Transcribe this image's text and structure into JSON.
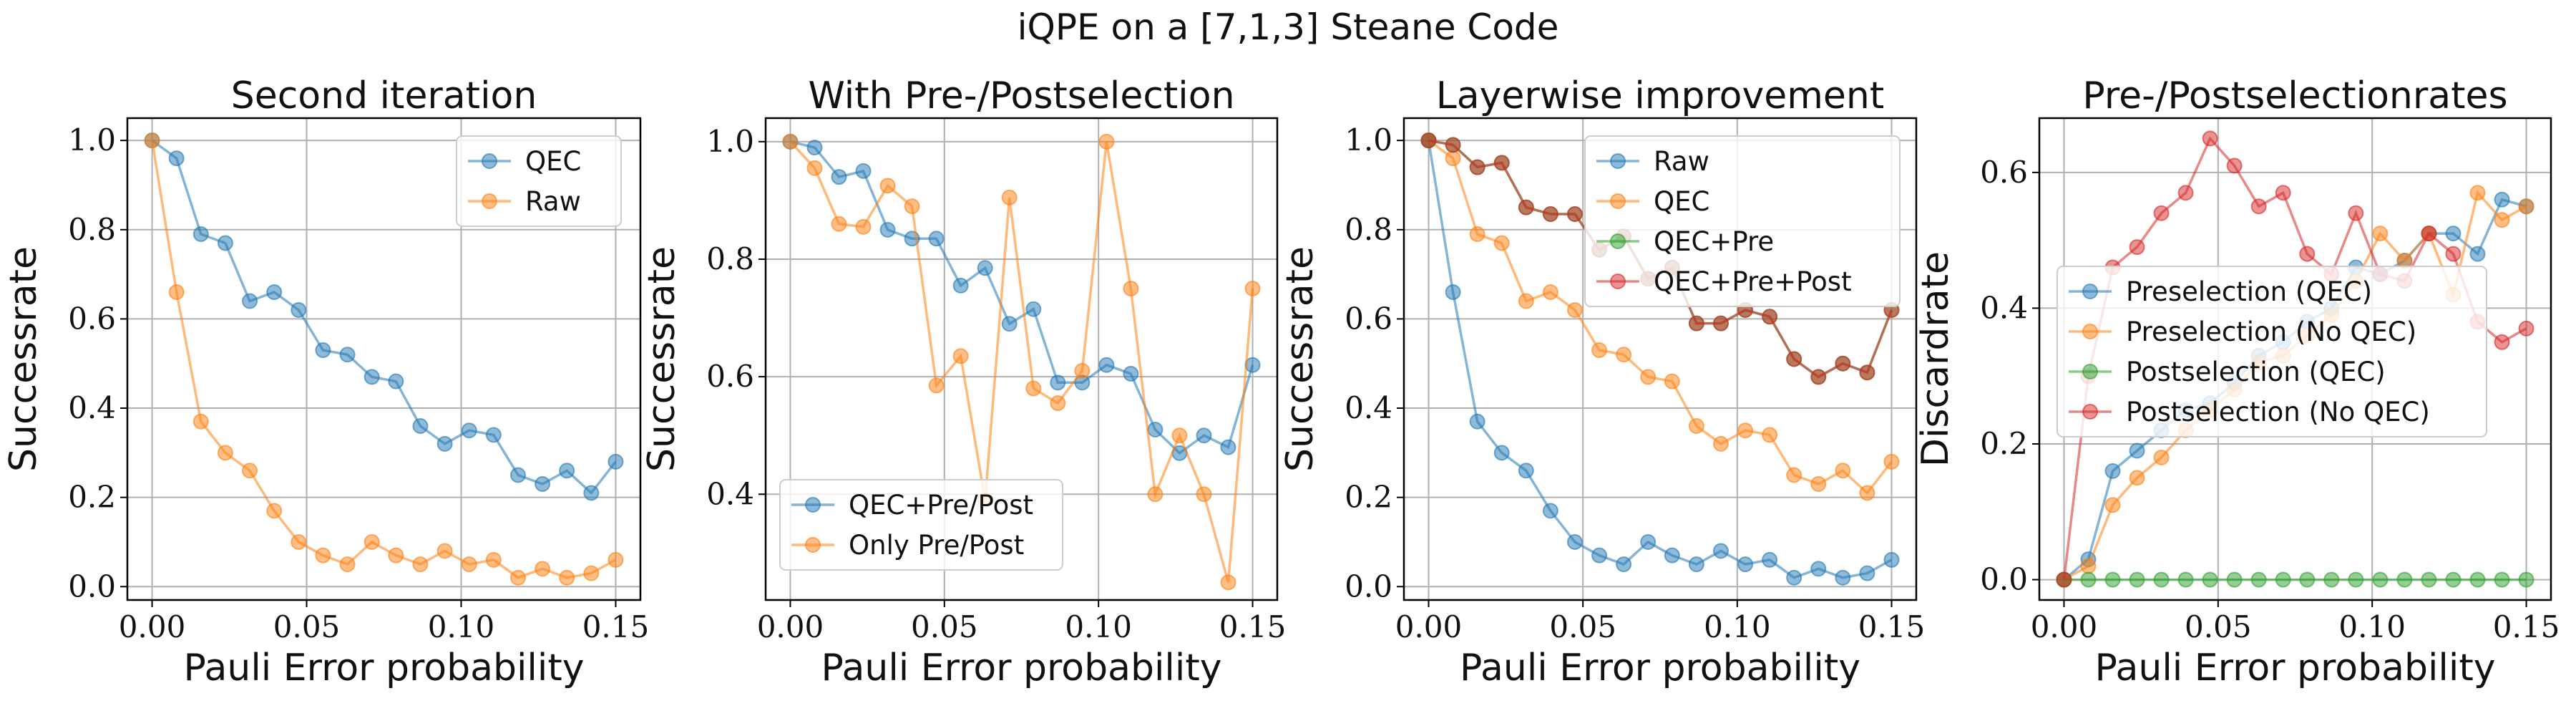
{
  "suptitle": "iQPE on a [7,1,3] Steane Code",
  "colors": {
    "blue": "#1f77b4",
    "orange": "#ff7f0e",
    "green": "#2ca02c",
    "red": "#d62728"
  },
  "chart_data": [
    {
      "type": "line",
      "title": "Second iteration",
      "xlabel": "Pauli Error probability",
      "ylabel": "Successrate",
      "xlim": [
        -0.008,
        0.158
      ],
      "ylim": [
        -0.03,
        1.05
      ],
      "xticks": [
        0.0,
        0.05,
        0.1,
        0.15
      ],
      "xtick_labels": [
        "0.00",
        "0.05",
        "0.10",
        "0.15"
      ],
      "yticks": [
        0.0,
        0.2,
        0.4,
        0.6,
        0.8,
        1.0
      ],
      "ytick_labels": [
        "0.0",
        "0.2",
        "0.4",
        "0.6",
        "0.8",
        "1.0"
      ],
      "grid": true,
      "legend": "top-right",
      "x": [
        0.0,
        0.0079,
        0.0158,
        0.0237,
        0.0316,
        0.0395,
        0.0474,
        0.0553,
        0.0632,
        0.0711,
        0.0789,
        0.0868,
        0.0947,
        0.1026,
        0.1105,
        0.1184,
        0.1263,
        0.1342,
        0.1421,
        0.15
      ],
      "series": [
        {
          "name": "QEC",
          "color": "blue",
          "values": [
            1.0,
            0.96,
            0.79,
            0.77,
            0.64,
            0.66,
            0.62,
            0.53,
            0.52,
            0.47,
            0.46,
            0.36,
            0.32,
            0.35,
            0.34,
            0.25,
            0.23,
            0.26,
            0.21,
            0.28
          ]
        },
        {
          "name": "Raw",
          "color": "orange",
          "values": [
            1.0,
            0.66,
            0.37,
            0.3,
            0.26,
            0.17,
            0.1,
            0.07,
            0.05,
            0.1,
            0.07,
            0.05,
            0.08,
            0.05,
            0.06,
            0.02,
            0.04,
            0.02,
            0.03,
            0.06
          ]
        }
      ]
    },
    {
      "type": "line",
      "title": "With Pre-/Postselection",
      "xlabel": "Pauli Error probability",
      "ylabel": "Successrate",
      "xlim": [
        -0.008,
        0.158
      ],
      "ylim": [
        0.22,
        1.04
      ],
      "xticks": [
        0.0,
        0.05,
        0.1,
        0.15
      ],
      "xtick_labels": [
        "0.00",
        "0.05",
        "0.10",
        "0.15"
      ],
      "yticks": [
        0.4,
        0.6,
        0.8,
        1.0
      ],
      "ytick_labels": [
        "0.4",
        "0.6",
        "0.8",
        "1.0"
      ],
      "grid": true,
      "legend": "bottom-left",
      "x": [
        0.0,
        0.0079,
        0.0158,
        0.0237,
        0.0316,
        0.0395,
        0.0474,
        0.0553,
        0.0632,
        0.0711,
        0.0789,
        0.0868,
        0.0947,
        0.1026,
        0.1105,
        0.1184,
        0.1263,
        0.1342,
        0.1421,
        0.15
      ],
      "series": [
        {
          "name": "QEC+Pre/Post",
          "color": "blue",
          "values": [
            1.0,
            0.99,
            0.94,
            0.95,
            0.85,
            0.835,
            0.835,
            0.755,
            0.785,
            0.69,
            0.715,
            0.59,
            0.59,
            0.62,
            0.605,
            0.51,
            0.47,
            0.5,
            0.48,
            0.62
          ]
        },
        {
          "name": "Only Pre/Post",
          "color": "orange",
          "values": [
            1.0,
            0.955,
            0.86,
            0.855,
            0.925,
            0.89,
            0.585,
            0.635,
            0.39,
            0.905,
            0.58,
            0.555,
            0.61,
            1.0,
            0.75,
            0.4,
            0.5,
            0.4,
            0.25,
            0.75
          ]
        }
      ]
    },
    {
      "type": "line",
      "title": "Layerwise improvement",
      "xlabel": "Pauli Error probability",
      "ylabel": "Successrate",
      "xlim": [
        -0.008,
        0.158
      ],
      "ylim": [
        -0.03,
        1.05
      ],
      "xticks": [
        0.0,
        0.05,
        0.1,
        0.15
      ],
      "xtick_labels": [
        "0.00",
        "0.05",
        "0.10",
        "0.15"
      ],
      "yticks": [
        0.0,
        0.2,
        0.4,
        0.6,
        0.8,
        1.0
      ],
      "ytick_labels": [
        "0.0",
        "0.2",
        "0.4",
        "0.6",
        "0.8",
        "1.0"
      ],
      "grid": true,
      "legend": "top-right",
      "x": [
        0.0,
        0.0079,
        0.0158,
        0.0237,
        0.0316,
        0.0395,
        0.0474,
        0.0553,
        0.0632,
        0.0711,
        0.0789,
        0.0868,
        0.0947,
        0.1026,
        0.1105,
        0.1184,
        0.1263,
        0.1342,
        0.1421,
        0.15
      ],
      "series": [
        {
          "name": "Raw",
          "color": "blue",
          "values": [
            1.0,
            0.66,
            0.37,
            0.3,
            0.26,
            0.17,
            0.1,
            0.07,
            0.05,
            0.1,
            0.07,
            0.05,
            0.08,
            0.05,
            0.06,
            0.02,
            0.04,
            0.02,
            0.03,
            0.06
          ]
        },
        {
          "name": "QEC",
          "color": "orange",
          "values": [
            1.0,
            0.96,
            0.79,
            0.77,
            0.64,
            0.66,
            0.62,
            0.53,
            0.52,
            0.47,
            0.46,
            0.36,
            0.32,
            0.35,
            0.34,
            0.25,
            0.23,
            0.26,
            0.21,
            0.28
          ]
        },
        {
          "name": "QEC+Pre",
          "color": "green",
          "values": [
            1.0,
            0.99,
            0.94,
            0.95,
            0.85,
            0.835,
            0.835,
            0.755,
            0.785,
            0.69,
            0.715,
            0.59,
            0.59,
            0.62,
            0.605,
            0.51,
            0.47,
            0.5,
            0.48,
            0.62
          ]
        },
        {
          "name": "QEC+Pre+Post",
          "color": "red",
          "values": [
            1.0,
            0.99,
            0.94,
            0.95,
            0.85,
            0.835,
            0.835,
            0.755,
            0.785,
            0.69,
            0.715,
            0.59,
            0.59,
            0.62,
            0.605,
            0.51,
            0.47,
            0.5,
            0.48,
            0.62
          ]
        }
      ]
    },
    {
      "type": "line",
      "title": "Pre-/Postselectionrates",
      "xlabel": "Pauli Error probability",
      "ylabel": "Discardrate",
      "xlim": [
        -0.008,
        0.158
      ],
      "ylim": [
        -0.03,
        0.68
      ],
      "xticks": [
        0.0,
        0.05,
        0.1,
        0.15
      ],
      "xtick_labels": [
        "0.00",
        "0.05",
        "0.10",
        "0.15"
      ],
      "yticks": [
        0.0,
        0.2,
        0.4,
        0.6
      ],
      "ytick_labels": [
        "0.0",
        "0.2",
        "0.4",
        "0.6"
      ],
      "grid": true,
      "legend": "center-left",
      "x": [
        0.0,
        0.0079,
        0.0158,
        0.0237,
        0.0316,
        0.0395,
        0.0474,
        0.0553,
        0.0632,
        0.0711,
        0.0789,
        0.0868,
        0.0947,
        0.1026,
        0.1105,
        0.1184,
        0.1263,
        0.1342,
        0.1421,
        0.15
      ],
      "series": [
        {
          "name": "Preselection (QEC)",
          "color": "blue",
          "values": [
            0.0,
            0.03,
            0.16,
            0.19,
            0.22,
            0.25,
            0.26,
            0.29,
            0.33,
            0.35,
            0.38,
            0.4,
            0.46,
            0.45,
            0.47,
            0.51,
            0.51,
            0.48,
            0.56,
            0.55
          ]
        },
        {
          "name": "Preselection (No QEC)",
          "color": "orange",
          "values": [
            0.0,
            0.02,
            0.11,
            0.15,
            0.18,
            0.22,
            0.25,
            0.28,
            0.32,
            0.33,
            0.36,
            0.39,
            0.44,
            0.51,
            0.47,
            0.51,
            0.42,
            0.57,
            0.53,
            0.55
          ]
        },
        {
          "name": "Postselection (QEC)",
          "color": "green",
          "values": [
            0.0,
            0.0,
            0.0,
            0.0,
            0.0,
            0.0,
            0.0,
            0.0,
            0.0,
            0.0,
            0.0,
            0.0,
            0.0,
            0.0,
            0.0,
            0.0,
            0.0,
            0.0,
            0.0,
            0.0
          ]
        },
        {
          "name": "Postselection (No QEC)",
          "color": "red",
          "values": [
            0.0,
            0.3,
            0.46,
            0.49,
            0.54,
            0.57,
            0.65,
            0.61,
            0.55,
            0.57,
            0.48,
            0.45,
            0.54,
            0.45,
            0.44,
            0.51,
            0.48,
            0.38,
            0.35,
            0.37
          ]
        }
      ]
    }
  ]
}
